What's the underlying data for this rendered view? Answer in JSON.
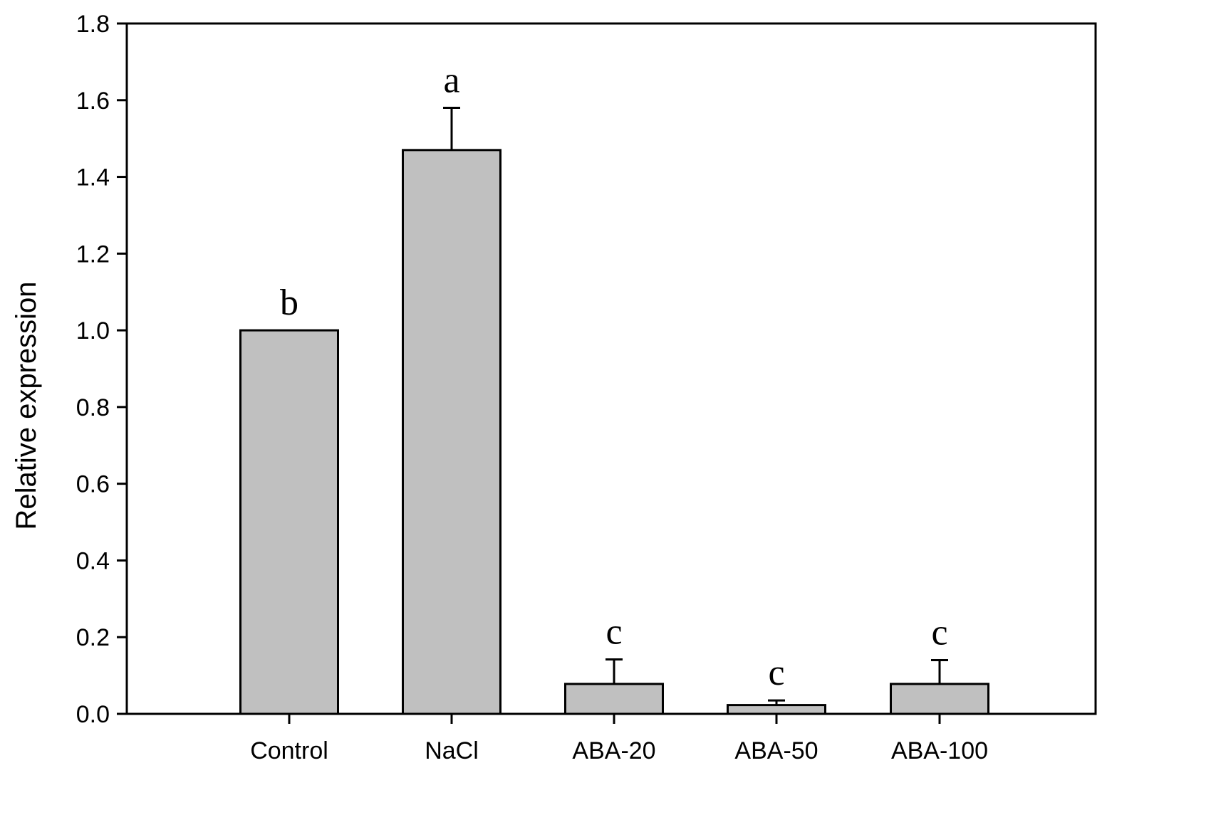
{
  "chart_data": {
    "type": "bar",
    "categories": [
      "Control",
      "NaCl",
      "ABA-20",
      "ABA-50",
      "ABA-100"
    ],
    "values": [
      1.0,
      1.47,
      0.078,
      0.023,
      0.078
    ],
    "error_upper": [
      0.0,
      0.11,
      0.064,
      0.012,
      0.062
    ],
    "significance_letters": [
      "b",
      "a",
      "c",
      "c",
      "c"
    ],
    "title": "",
    "xlabel": "",
    "ylabel": "Relative expression",
    "ylim": [
      0,
      1.8
    ],
    "yticks": [
      0.0,
      0.2,
      0.4,
      0.6,
      0.8,
      1.0,
      1.2,
      1.4,
      1.6,
      1.8
    ],
    "ytick_labels": [
      "0.0",
      "0.2",
      "0.4",
      "0.6",
      "0.8",
      "1.0",
      "1.2",
      "1.4",
      "1.6",
      "1.8"
    ],
    "grid": false,
    "legend": "none",
    "bar_color": "#c0c0c0",
    "edge_color": "#000000"
  }
}
